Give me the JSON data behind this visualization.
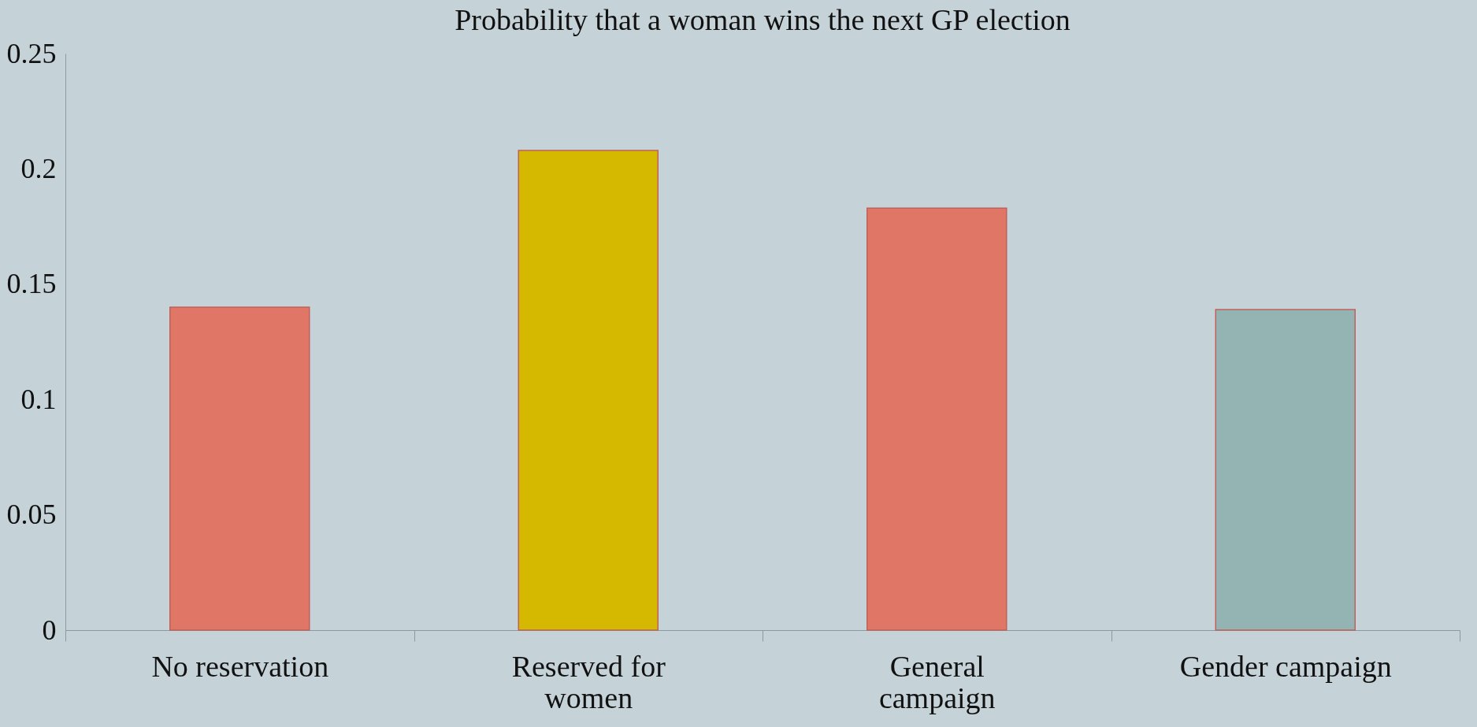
{
  "chart_data": {
    "type": "bar",
    "title": "Probability that a woman wins the next GP election",
    "categories": [
      "No reservation",
      "Reserved for women",
      "General campaign",
      "Gender campaign"
    ],
    "values": [
      0.14,
      0.208,
      0.183,
      0.139
    ],
    "colors": [
      "#e07766",
      "#d4b900",
      "#e07766",
      "#94b4b4"
    ],
    "ylim": [
      0,
      0.25
    ],
    "yticks": [
      0,
      0.05,
      0.1,
      0.15,
      0.2,
      0.25
    ],
    "grid": false,
    "legend": false
  }
}
